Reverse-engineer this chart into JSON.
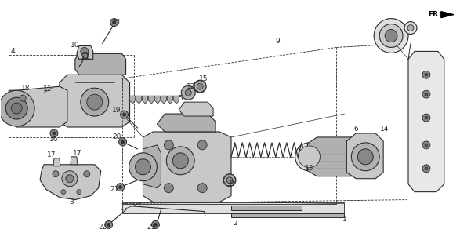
{
  "bg_color": "#ffffff",
  "line_color": "#2a2a2a",
  "fig_width": 5.87,
  "fig_height": 3.2,
  "dpi": 100,
  "parts_color": "#c8c8c8",
  "dark_color": "#888888",
  "medium_color": "#b0b0b0"
}
